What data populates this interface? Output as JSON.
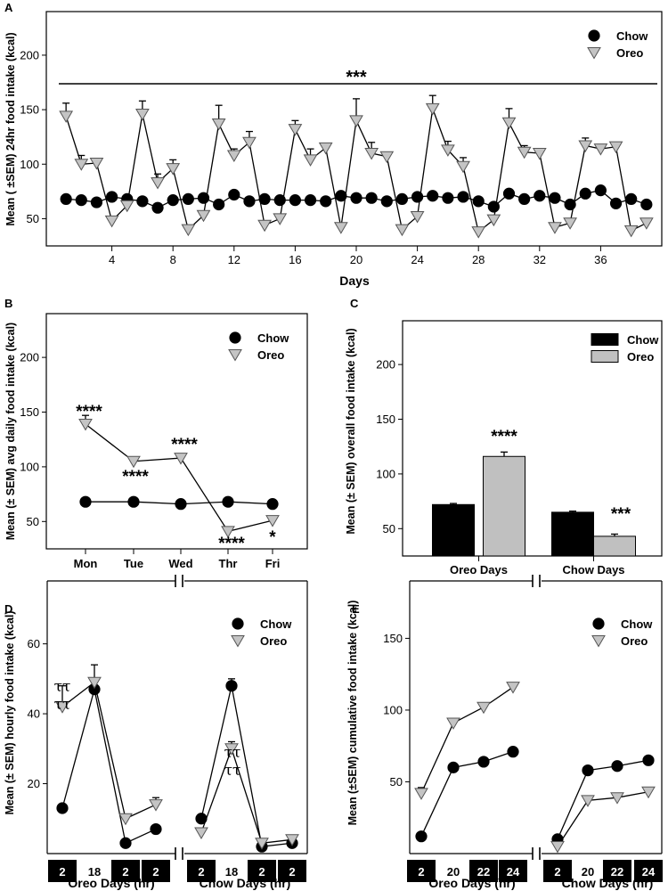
{
  "chart_data": [
    {
      "panel_label": "A",
      "type": "line",
      "ylabel": "Mean ( ±SEM) 24hr food intake (kcal)",
      "xlabel": "Days",
      "xlim": [
        0,
        40
      ],
      "ylim": [
        25,
        240
      ],
      "xticks": [
        4,
        8,
        12,
        16,
        20,
        24,
        28,
        32,
        36
      ],
      "yticks": [
        50,
        100,
        150,
        200
      ],
      "significance": "***",
      "legend": [
        "Chow",
        "Oreo"
      ],
      "series": [
        {
          "name": "Chow",
          "marker": "circle",
          "x": [
            1,
            2,
            3,
            4,
            5,
            6,
            7,
            8,
            9,
            10,
            11,
            12,
            13,
            14,
            15,
            16,
            17,
            18,
            19,
            20,
            21,
            22,
            23,
            24,
            25,
            26,
            27,
            28,
            29,
            30,
            31,
            32,
            33,
            34,
            35,
            36,
            37,
            38,
            39
          ],
          "y": [
            68,
            67,
            65,
            70,
            68,
            66,
            60,
            67,
            68,
            69,
            63,
            72,
            66,
            68,
            67,
            67,
            67,
            66,
            71,
            69,
            69,
            66,
            68,
            70,
            71,
            69,
            70,
            66,
            61,
            73,
            68,
            71,
            69,
            63,
            73,
            76,
            64,
            68,
            63
          ],
          "err": [
            0,
            0,
            0,
            0,
            0,
            0,
            0,
            0,
            0,
            0,
            0,
            0,
            0,
            0,
            0,
            0,
            0,
            0,
            0,
            0,
            0,
            0,
            0,
            0,
            0,
            0,
            0,
            0,
            0,
            0,
            0,
            0,
            0,
            0,
            0,
            0,
            0,
            0,
            0
          ]
        },
        {
          "name": "Oreo",
          "marker": "triangle",
          "x": [
            1,
            2,
            3,
            4,
            5,
            6,
            7,
            8,
            9,
            10,
            11,
            12,
            13,
            14,
            15,
            16,
            17,
            18,
            19,
            20,
            21,
            22,
            23,
            24,
            25,
            26,
            27,
            28,
            29,
            30,
            31,
            32,
            33,
            34,
            35,
            36,
            37,
            38,
            39
          ],
          "y": [
            144,
            100,
            101,
            48,
            62,
            146,
            83,
            96,
            40,
            53,
            137,
            108,
            120,
            44,
            50,
            132,
            104,
            115,
            42,
            140,
            110,
            107,
            40,
            52,
            151,
            113,
            98,
            38,
            49,
            138,
            111,
            110,
            42,
            46,
            117,
            114,
            116,
            39,
            46
          ],
          "err": [
            12,
            8,
            0,
            0,
            0,
            12,
            8,
            8,
            0,
            0,
            17,
            6,
            10,
            0,
            0,
            8,
            10,
            0,
            0,
            20,
            10,
            0,
            0,
            0,
            12,
            8,
            8,
            0,
            0,
            13,
            6,
            0,
            0,
            0,
            7,
            4,
            4,
            0,
            0
          ]
        }
      ]
    },
    {
      "panel_label": "B",
      "type": "line",
      "ylabel": "Mean (± SEM) avg daily food intake (kcal)",
      "categories": [
        "Mon",
        "Tue",
        "Wed",
        "Thr",
        "Fri"
      ],
      "ylim": [
        25,
        240
      ],
      "yticks": [
        50,
        100,
        150,
        200
      ],
      "legend": [
        "Chow",
        "Oreo"
      ],
      "series": [
        {
          "name": "Chow",
          "marker": "circle",
          "values": [
            68,
            68,
            66,
            68,
            66
          ],
          "err": [
            0,
            0,
            0,
            0,
            0
          ]
        },
        {
          "name": "Oreo",
          "marker": "triangle",
          "values": [
            139,
            105,
            108,
            41,
            51
          ],
          "err": [
            8,
            3,
            0,
            0,
            0
          ]
        }
      ],
      "annotations": [
        "****",
        "****",
        "****",
        "****",
        "*"
      ]
    },
    {
      "panel_label": "C",
      "type": "bar",
      "ylabel": "Mean (± SEM) overall food intake (kcal)",
      "categories": [
        "Oreo Days",
        "Chow Days"
      ],
      "ylim": [
        25,
        240
      ],
      "yticks": [
        50,
        100,
        150,
        200
      ],
      "legend": [
        "Chow",
        "Oreo"
      ],
      "series": [
        {
          "name": "Chow",
          "color": "#000000",
          "values": [
            72,
            65
          ],
          "err": [
            1,
            1
          ]
        },
        {
          "name": "Oreo",
          "color": "#c0c0c0",
          "values": [
            116,
            43
          ],
          "err": [
            4,
            2
          ]
        }
      ],
      "annotations": [
        "****",
        "***"
      ]
    },
    {
      "panel_label": "D",
      "type": "line",
      "ylabel": "Mean (± SEM) hourly food intake (kcal)",
      "ylim": [
        0,
        78
      ],
      "yticks": [
        20,
        40,
        60
      ],
      "legend": [
        "Chow",
        "Oreo"
      ],
      "x_ticks": [
        "2",
        "18",
        "2",
        "2"
      ],
      "x_ticks_boxed": [
        true,
        false,
        true,
        true
      ],
      "group_labels": [
        "Oreo Days (hr)",
        "Chow Days (hr)"
      ],
      "groups": [
        {
          "name": "Oreo Days (hr)",
          "series": [
            {
              "name": "Chow",
              "marker": "circle",
              "values": [
                13,
                47,
                3,
                7
              ],
              "err": [
                0,
                0,
                0,
                0
              ]
            },
            {
              "name": "Oreo",
              "marker": "triangle",
              "values": [
                42,
                49,
                10,
                14
              ],
              "err": [
                6,
                5,
                0,
                2
              ]
            }
          ],
          "annotation": "ττ\nττ"
        },
        {
          "name": "Chow Days (hr)",
          "series": [
            {
              "name": "Chow",
              "marker": "circle",
              "values": [
                10,
                48,
                2,
                3
              ],
              "err": [
                0,
                2,
                0,
                0
              ]
            },
            {
              "name": "Oreo",
              "marker": "triangle",
              "values": [
                6,
                30,
                3,
                4
              ],
              "err": [
                0,
                2,
                0,
                0
              ]
            }
          ],
          "annotation": "ττ\nττ"
        }
      ]
    },
    {
      "panel_label": "E",
      "type": "line",
      "ylabel": "Mean (±SEM) cumulative food intake (kcal)",
      "ylim": [
        0,
        190
      ],
      "yticks": [
        50,
        100,
        150
      ],
      "legend": [
        "Chow",
        "Oreo"
      ],
      "x_ticks": [
        "2",
        "20",
        "22",
        "24"
      ],
      "x_ticks_boxed": [
        true,
        false,
        true,
        true
      ],
      "group_labels": [
        "Oreo Days (hr)",
        "Chow Days (hr)"
      ],
      "groups": [
        {
          "name": "Oreo Days (hr)",
          "series": [
            {
              "name": "Chow",
              "marker": "circle",
              "values": [
                12,
                60,
                64,
                71
              ],
              "err": [
                0,
                0,
                0,
                0
              ]
            },
            {
              "name": "Oreo",
              "marker": "triangle",
              "values": [
                42,
                91,
                102,
                116
              ],
              "err": [
                4,
                0,
                0,
                3
              ]
            }
          ]
        },
        {
          "name": "Chow Days (hr)",
          "series": [
            {
              "name": "Chow",
              "marker": "circle",
              "values": [
                10,
                58,
                61,
                65
              ],
              "err": [
                0,
                0,
                0,
                0
              ]
            },
            {
              "name": "Oreo",
              "marker": "triangle",
              "values": [
                5,
                37,
                39,
                43
              ],
              "err": [
                0,
                0,
                0,
                0
              ]
            }
          ]
        }
      ]
    }
  ]
}
